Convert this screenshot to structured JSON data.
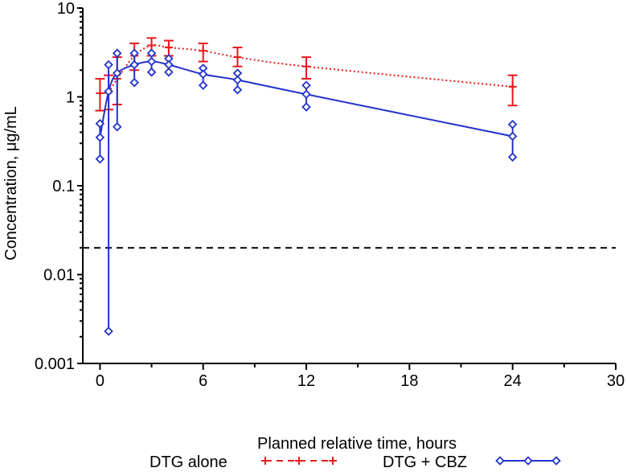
{
  "chart_data": {
    "type": "line",
    "xlabel": "Planned relative time, hours",
    "ylabel": "Concentration, μg/mL",
    "xlim": [
      -1,
      30
    ],
    "ylim": [
      0.001,
      10
    ],
    "y_scale": "log",
    "x_ticks": [
      0,
      6,
      12,
      18,
      24,
      30
    ],
    "y_ticks": [
      0.001,
      0.01,
      0.1,
      1,
      10
    ],
    "y_tick_labels": [
      "0.001",
      "0.01",
      "0.1",
      "1",
      "10"
    ],
    "grid": false,
    "legend_position": "bottom",
    "reference_line": {
      "y": 0.02,
      "style": "dashed",
      "color": "#000000"
    },
    "series": [
      {
        "name": "DTG  alone",
        "color": "#e8191c",
        "line_style": "dotted",
        "marker": "plus",
        "points": [
          {
            "x": 0,
            "y": 1.1,
            "lo": 0.7,
            "hi": 1.6
          },
          {
            "x": 0.5,
            "y": 1.15,
            "lo": 0.72,
            "hi": 1.75
          },
          {
            "x": 1,
            "y": 1.6,
            "lo": 0.82,
            "hi": 2.8
          },
          {
            "x": 2,
            "y": 2.9,
            "lo": 2.0,
            "hi": 4.0
          },
          {
            "x": 3,
            "y": 3.8,
            "lo": 2.9,
            "hi": 4.6
          },
          {
            "x": 4,
            "y": 3.6,
            "lo": 2.9,
            "hi": 4.3
          },
          {
            "x": 6,
            "y": 3.3,
            "lo": 2.5,
            "hi": 4.0
          },
          {
            "x": 8,
            "y": 2.8,
            "lo": 2.2,
            "hi": 3.6
          },
          {
            "x": 12,
            "y": 2.2,
            "lo": 1.6,
            "hi": 2.8
          },
          {
            "x": 24,
            "y": 1.3,
            "lo": 0.8,
            "hi": 1.75
          }
        ]
      },
      {
        "name": "DTG + CBZ",
        "color": "#2233cc",
        "line_style": "solid",
        "marker": "diamond",
        "points": [
          {
            "x": 0,
            "y": 0.35,
            "lo": 0.2,
            "hi": 0.5
          },
          {
            "x": 0.5,
            "y": 1.15,
            "lo": 0.0023,
            "hi": 2.3
          },
          {
            "x": 1,
            "y": 1.85,
            "lo": 0.46,
            "hi": 3.1
          },
          {
            "x": 2,
            "y": 2.3,
            "lo": 1.45,
            "hi": 3.1
          },
          {
            "x": 3,
            "y": 2.5,
            "lo": 1.9,
            "hi": 3.1
          },
          {
            "x": 4,
            "y": 2.3,
            "lo": 1.9,
            "hi": 2.7
          },
          {
            "x": 6,
            "y": 1.8,
            "lo": 1.35,
            "hi": 2.1
          },
          {
            "x": 8,
            "y": 1.55,
            "lo": 1.2,
            "hi": 1.85
          },
          {
            "x": 12,
            "y": 1.07,
            "lo": 0.77,
            "hi": 1.35
          },
          {
            "x": 24,
            "y": 0.36,
            "lo": 0.21,
            "hi": 0.49
          }
        ]
      }
    ]
  }
}
